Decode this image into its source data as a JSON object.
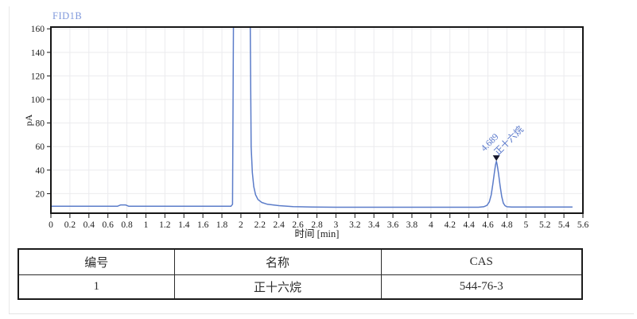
{
  "chart_data": {
    "type": "line",
    "title": "FID1B",
    "xlabel": "时间 [min]",
    "ylabel": "pA",
    "xlim": [
      0,
      5.6
    ],
    "ylim": [
      3.4,
      161.5
    ],
    "x_ticks": [
      0,
      0.2,
      0.4,
      0.6,
      0.8,
      1,
      1.2,
      1.4,
      1.6,
      1.8,
      2,
      2.2,
      2.4,
      2.6,
      2.8,
      3,
      3.2,
      3.4,
      3.6,
      3.8,
      4,
      4.2,
      4.4,
      4.6,
      4.8,
      5,
      5.2,
      5.4,
      5.6
    ],
    "y_ticks": [
      20,
      40,
      60,
      80,
      100,
      120,
      140,
      160
    ],
    "grid": true,
    "baseline_pA": 9.0,
    "peaks": [
      {
        "rt_min": 2.0,
        "rt_label": "",
        "name": "",
        "apex_pA": null,
        "note": "solvent front, off-scale"
      },
      {
        "rt_min": 4.689,
        "rt_label": "4.689",
        "name": "正十六烷",
        "apex_pA": 47.5,
        "marker": "triangle-down"
      }
    ],
    "trace": [
      [
        0,
        9.3
      ],
      [
        0.7,
        9.3
      ],
      [
        0.735,
        10.4
      ],
      [
        0.785,
        10.4
      ],
      [
        0.82,
        9.3
      ],
      [
        1.895,
        9.3
      ],
      [
        1.912,
        11
      ],
      [
        1.922,
        170
      ],
      [
        1.93,
        400
      ],
      [
        2.09,
        400
      ],
      [
        2.098,
        170
      ],
      [
        2.108,
        60
      ],
      [
        2.12,
        38
      ],
      [
        2.135,
        26
      ],
      [
        2.155,
        19
      ],
      [
        2.18,
        15
      ],
      [
        2.22,
        12.5
      ],
      [
        2.28,
        11
      ],
      [
        2.4,
        9.8
      ],
      [
        2.55,
        9.0
      ],
      [
        2.75,
        8.6
      ],
      [
        3.0,
        8.5
      ],
      [
        3.6,
        8.5
      ],
      [
        4.5,
        8.5
      ],
      [
        4.555,
        8.9
      ],
      [
        4.59,
        10
      ],
      [
        4.615,
        13
      ],
      [
        4.635,
        19
      ],
      [
        4.652,
        28
      ],
      [
        4.668,
        38
      ],
      [
        4.68,
        44.5
      ],
      [
        4.689,
        47.5
      ],
      [
        4.698,
        44.5
      ],
      [
        4.712,
        37
      ],
      [
        4.728,
        27
      ],
      [
        4.745,
        17.5
      ],
      [
        4.762,
        12
      ],
      [
        4.78,
        9.8
      ],
      [
        4.8,
        8.9
      ],
      [
        4.85,
        8.6
      ],
      [
        5.0,
        8.6
      ],
      [
        5.49,
        8.6
      ]
    ],
    "colors": {
      "trace": "#5b7cc9",
      "title": "#8099dc",
      "peak_label": "#5272c8",
      "marker": "#14162b",
      "axis": "#161616",
      "tick_text": "#1c1c1c",
      "grid": "#ebebee"
    }
  },
  "table": {
    "headers": [
      "编号",
      "名称",
      "CAS"
    ],
    "rows": [
      [
        "1",
        "正十六烷",
        "544-76-3"
      ]
    ]
  }
}
